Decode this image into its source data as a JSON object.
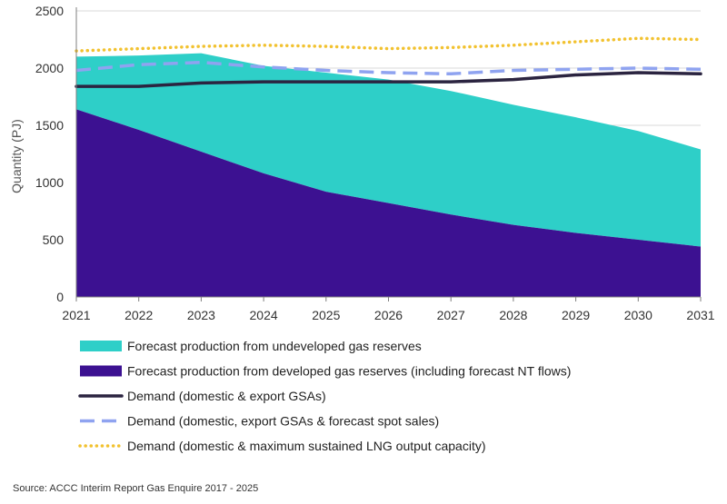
{
  "chart_data": {
    "type": "area",
    "title": "",
    "xlabel": "",
    "ylabel": "Quantity (PJ)",
    "x": [
      "2021",
      "2022",
      "2023",
      "2024",
      "2025",
      "2026",
      "2027",
      "2028",
      "2029",
      "2030",
      "2031"
    ],
    "xlim": [
      2021,
      2031
    ],
    "ylim": [
      0,
      2500
    ],
    "yticks": [
      "0",
      "500",
      "1000",
      "1500",
      "2000",
      "2500"
    ],
    "grid": "horizontal",
    "legend_position": "bottom",
    "colors": {
      "undeveloped": "#2ECFC8",
      "developed": "#3C1191",
      "demand_gsa": "#2B2440",
      "demand_spot": "#8FA3F0",
      "demand_lng": "#F2C230"
    },
    "series": [
      {
        "name": "Forecast production from developed gas reserves (including forecast NT flows)",
        "kind": "area",
        "values": [
          1640,
          1460,
          1270,
          1080,
          920,
          820,
          720,
          630,
          560,
          500,
          440
        ]
      },
      {
        "name": "Forecast production from undeveloped gas reserves",
        "kind": "area",
        "total_values": [
          2100,
          2110,
          2130,
          2020,
          1960,
          1900,
          1800,
          1680,
          1570,
          1450,
          1290
        ]
      },
      {
        "name": "Demand (domestic & export GSAs)",
        "kind": "line-solid",
        "values": [
          1840,
          1840,
          1870,
          1880,
          1880,
          1880,
          1880,
          1900,
          1940,
          1960,
          1950
        ]
      },
      {
        "name": "Demand (domestic, export GSAs & forecast spot sales)",
        "kind": "line-dashed",
        "values": [
          1980,
          2030,
          2050,
          2010,
          1980,
          1960,
          1950,
          1980,
          1990,
          2000,
          1990
        ]
      },
      {
        "name": "Demand (domestic & maximum sustained LNG output capacity)",
        "kind": "line-dotted",
        "values": [
          2150,
          2170,
          2190,
          2200,
          2190,
          2170,
          2180,
          2200,
          2230,
          2260,
          2250
        ]
      }
    ],
    "legend": [
      {
        "label": "Forecast production from undeveloped gas reserves",
        "swatch": "area-undeveloped"
      },
      {
        "label": "Forecast production from developed gas reserves (including forecast NT flows)",
        "swatch": "area-developed"
      },
      {
        "label": "Demand (domestic & export GSAs)",
        "swatch": "line-solid"
      },
      {
        "label": "Demand (domestic, export GSAs & forecast spot sales)",
        "swatch": "line-dashed"
      },
      {
        "label": "Demand (domestic & maximum sustained LNG output capacity)",
        "swatch": "line-dotted"
      }
    ],
    "source": "Source: ACCC  Interim Report Gas Enquire 2017 - 2025"
  }
}
